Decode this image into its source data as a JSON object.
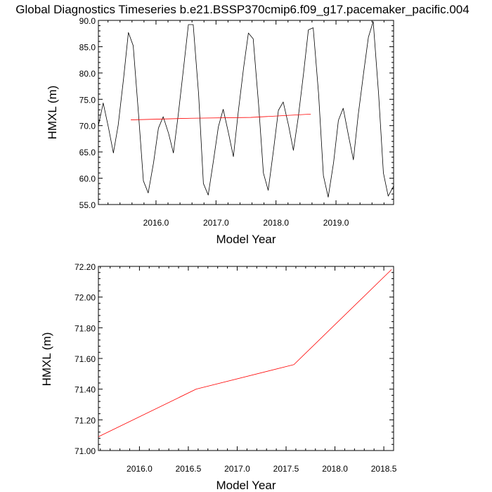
{
  "title": "Global Diagnostics Timeseries b.e21.BSSP370cmip6.f09_g17.pacemaker_pacific.004",
  "colors": {
    "monthly_line": "#000000",
    "trend_line": "#ff0000",
    "frame": "#000000"
  },
  "chart_data": [
    {
      "type": "line",
      "xlabel": "Model Year",
      "ylabel": "HMXL (m)",
      "xlim": [
        2015.04,
        2019.96
      ],
      "ylim": [
        55.0,
        90.0
      ],
      "xticks": [
        2016.0,
        2017.0,
        2018.0,
        2019.0
      ],
      "xtick_labels": [
        "2016.0",
        "2017.0",
        "2018.0",
        "2019.0"
      ],
      "yticks": [
        55.0,
        60.0,
        65.0,
        70.0,
        75.0,
        80.0,
        85.0,
        90.0
      ],
      "ytick_labels": [
        "55.0",
        "60.0",
        "65.0",
        "70.0",
        "75.0",
        "80.0",
        "85.0",
        "90.0"
      ],
      "grid": false,
      "series": [
        {
          "color": "#000000",
          "x": [
            2015.04,
            2015.12,
            2015.21,
            2015.29,
            2015.37,
            2015.46,
            2015.54,
            2015.62,
            2015.71,
            2015.79,
            2015.87,
            2015.96,
            2016.04,
            2016.12,
            2016.21,
            2016.29,
            2016.37,
            2016.46,
            2016.54,
            2016.62,
            2016.71,
            2016.79,
            2016.87,
            2016.96,
            2017.04,
            2017.12,
            2017.21,
            2017.29,
            2017.37,
            2017.46,
            2017.54,
            2017.62,
            2017.71,
            2017.79,
            2017.87,
            2017.96,
            2018.04,
            2018.12,
            2018.21,
            2018.29,
            2018.37,
            2018.46,
            2018.54,
            2018.62,
            2018.71,
            2018.79,
            2018.87,
            2018.96,
            2019.04,
            2019.12,
            2019.21,
            2019.29,
            2019.37,
            2019.46,
            2019.54,
            2019.62,
            2019.71,
            2019.79,
            2019.87,
            2019.96
          ],
          "y": [
            70.0,
            74.3,
            69.5,
            64.8,
            70.1,
            79.0,
            87.7,
            85.2,
            72.0,
            59.5,
            57.2,
            63.0,
            69.5,
            71.7,
            68.5,
            64.8,
            72.0,
            81.0,
            89.2,
            89.2,
            76.0,
            59.0,
            56.8,
            63.5,
            69.8,
            73.1,
            68.5,
            64.1,
            72.5,
            81.0,
            87.6,
            86.5,
            74.0,
            61.0,
            57.7,
            65.5,
            72.9,
            74.5,
            70.0,
            65.3,
            71.5,
            80.0,
            88.2,
            88.6,
            76.0,
            60.5,
            56.4,
            63.0,
            71.0,
            73.3,
            68.0,
            63.5,
            72.0,
            80.0,
            86.8,
            89.8,
            76.0,
            61.0,
            56.6,
            58.5
          ]
        },
        {
          "color": "#ff0000",
          "x": [
            2015.58,
            2016.58,
            2017.58,
            2018.58
          ],
          "y": [
            71.09,
            71.4,
            71.56,
            72.18
          ]
        }
      ]
    },
    {
      "type": "line",
      "xlabel": "Model Year",
      "ylabel": "HMXL (m)",
      "xlim": [
        2015.58,
        2018.6
      ],
      "ylim": [
        71.0,
        72.2
      ],
      "xticks": [
        2016.0,
        2016.5,
        2017.0,
        2017.5,
        2018.0,
        2018.5
      ],
      "xtick_labels": [
        "2016.0",
        "2016.5",
        "2017.0",
        "2017.5",
        "2018.0",
        "2018.5"
      ],
      "yticks": [
        71.0,
        71.2,
        71.4,
        71.6,
        71.8,
        72.0,
        72.2
      ],
      "ytick_labels": [
        "71.00",
        "71.20",
        "71.40",
        "71.60",
        "71.80",
        "72.00",
        "72.20"
      ],
      "grid": false,
      "series": [
        {
          "color": "#ff0000",
          "x": [
            2015.58,
            2016.58,
            2017.58,
            2018.58
          ],
          "y": [
            71.09,
            71.4,
            71.56,
            72.18
          ]
        }
      ]
    }
  ]
}
